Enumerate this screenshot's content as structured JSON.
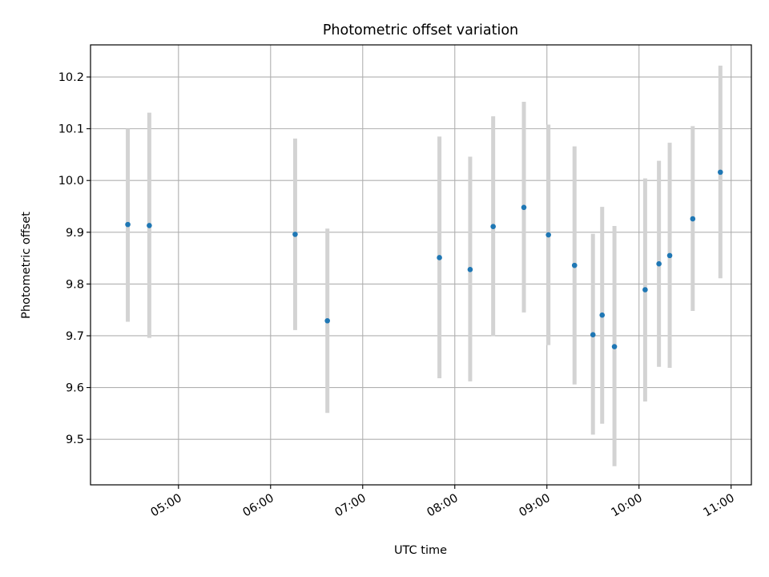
{
  "chart_data": {
    "type": "scatter",
    "title": "Photometric offset variation",
    "xlabel": "UTC time",
    "ylabel": "Photometric offset",
    "x_tick_labels": [
      "05:00",
      "06:00",
      "07:00",
      "08:00",
      "09:00",
      "10:00",
      "11:00"
    ],
    "x_ticks_hours": [
      5,
      6,
      7,
      8,
      9,
      10,
      11
    ],
    "y_tick_labels": [
      "9.5",
      "9.6",
      "9.7",
      "9.8",
      "9.9",
      "10.0",
      "10.1",
      "10.2"
    ],
    "y_ticks": [
      9.5,
      9.6,
      9.7,
      9.8,
      9.9,
      10.0,
      10.1,
      10.2
    ],
    "xlim_hours": [
      4.045,
      11.22
    ],
    "ylim": [
      9.412,
      10.262
    ],
    "grid": true,
    "colors": {
      "point": "#1f77b4",
      "errorbar": "#d3d3d3",
      "grid": "#b0b0b0"
    },
    "series": [
      {
        "points": [
          {
            "x": "04:27",
            "y": 9.915,
            "y_low": 9.727,
            "y_high": 10.1
          },
          {
            "x": "04:41",
            "y": 9.913,
            "y_low": 9.696,
            "y_high": 10.131
          },
          {
            "x": "06:16",
            "y": 9.896,
            "y_low": 9.711,
            "y_high": 10.081
          },
          {
            "x": "06:37",
            "y": 9.729,
            "y_low": 9.551,
            "y_high": 9.907
          },
          {
            "x": "07:50",
            "y": 9.851,
            "y_low": 9.618,
            "y_high": 10.085
          },
          {
            "x": "08:10",
            "y": 9.828,
            "y_low": 9.612,
            "y_high": 10.046
          },
          {
            "x": "08:25",
            "y": 9.911,
            "y_low": 9.699,
            "y_high": 10.124
          },
          {
            "x": "08:45",
            "y": 9.948,
            "y_low": 9.745,
            "y_high": 10.152
          },
          {
            "x": "09:01",
            "y": 9.895,
            "y_low": 9.682,
            "y_high": 10.108
          },
          {
            "x": "09:18",
            "y": 9.836,
            "y_low": 9.606,
            "y_high": 10.066
          },
          {
            "x": "09:30",
            "y": 9.702,
            "y_low": 9.509,
            "y_high": 9.897
          },
          {
            "x": "09:36",
            "y": 9.74,
            "y_low": 9.53,
            "y_high": 9.949
          },
          {
            "x": "09:44",
            "y": 9.679,
            "y_low": 9.448,
            "y_high": 9.912
          },
          {
            "x": "10:04",
            "y": 9.789,
            "y_low": 9.573,
            "y_high": 10.004
          },
          {
            "x": "10:13",
            "y": 9.839,
            "y_low": 9.64,
            "y_high": 10.038
          },
          {
            "x": "10:20",
            "y": 9.855,
            "y_low": 9.638,
            "y_high": 10.073
          },
          {
            "x": "10:35",
            "y": 9.926,
            "y_low": 9.748,
            "y_high": 10.105
          },
          {
            "x": "10:53",
            "y": 10.016,
            "y_low": 9.811,
            "y_high": 10.222
          }
        ]
      }
    ]
  }
}
